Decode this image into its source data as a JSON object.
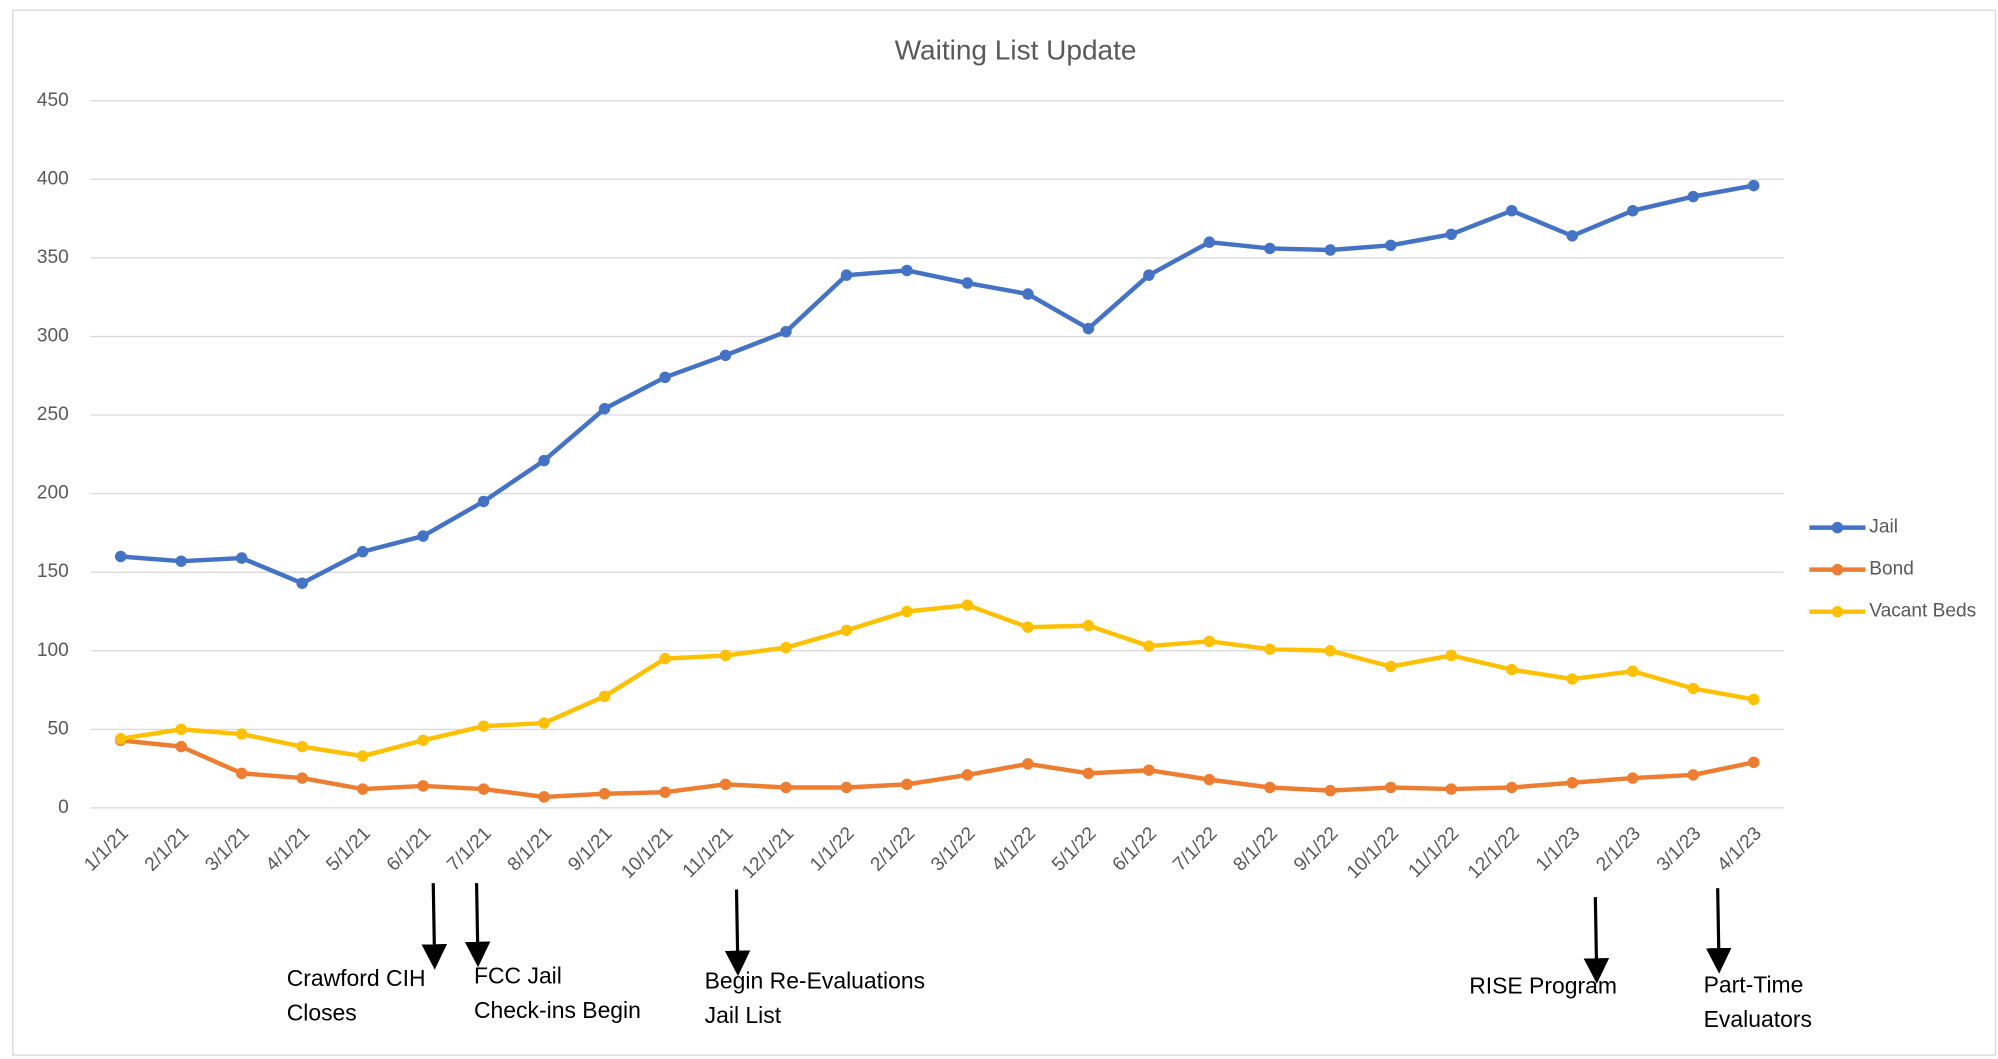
{
  "chart_data": {
    "type": "line",
    "title": "Waiting List Update",
    "categories": [
      "1/1/21",
      "2/1/21",
      "3/1/21",
      "4/1/21",
      "5/1/21",
      "6/1/21",
      "7/1/21",
      "8/1/21",
      "9/1/21",
      "10/1/21",
      "11/1/21",
      "12/1/21",
      "1/1/22",
      "2/1/22",
      "3/1/22",
      "4/1/22",
      "5/1/22",
      "6/1/22",
      "7/1/22",
      "8/1/22",
      "9/1/22",
      "10/1/22",
      "11/1/22",
      "12/1/22",
      "1/1/23",
      "2/1/23",
      "3/1/23",
      "4/1/23"
    ],
    "series": [
      {
        "name": "Jail",
        "color": "#4472c4",
        "values": [
          160,
          157,
          159,
          143,
          163,
          173,
          195,
          221,
          254,
          274,
          288,
          303,
          339,
          342,
          334,
          327,
          305,
          339,
          360,
          356,
          355,
          358,
          365,
          380,
          364,
          380,
          389,
          396
        ]
      },
      {
        "name": "Bond",
        "color": "#ed7d31",
        "values": [
          43,
          39,
          22,
          19,
          12,
          14,
          12,
          7,
          9,
          10,
          15,
          13,
          13,
          15,
          21,
          28,
          22,
          24,
          18,
          13,
          11,
          13,
          12,
          13,
          16,
          19,
          21,
          29
        ]
      },
      {
        "name": "Vacant Beds",
        "color": "#ffc000",
        "values": [
          44,
          50,
          47,
          39,
          33,
          43,
          52,
          54,
          71,
          95,
          97,
          102,
          113,
          125,
          129,
          115,
          116,
          103,
          106,
          101,
          100,
          90,
          97,
          88,
          82,
          87,
          76,
          69
        ]
      }
    ],
    "ylim": [
      0,
      450
    ],
    "yticks": [
      0,
      50,
      100,
      150,
      200,
      250,
      300,
      350,
      400,
      450
    ],
    "grid": true,
    "legend": "right",
    "annotations": [
      {
        "lines": [
          "Crawford CIH",
          "Closes"
        ]
      },
      {
        "lines": [
          "FCC Jail",
          "Check-ins Begin"
        ]
      },
      {
        "lines": [
          "Begin Re-Evaluations",
          "Jail List"
        ]
      },
      {
        "lines": [
          "RISE Program"
        ]
      },
      {
        "lines": [
          "Part-Time",
          "Evaluators"
        ]
      }
    ]
  }
}
